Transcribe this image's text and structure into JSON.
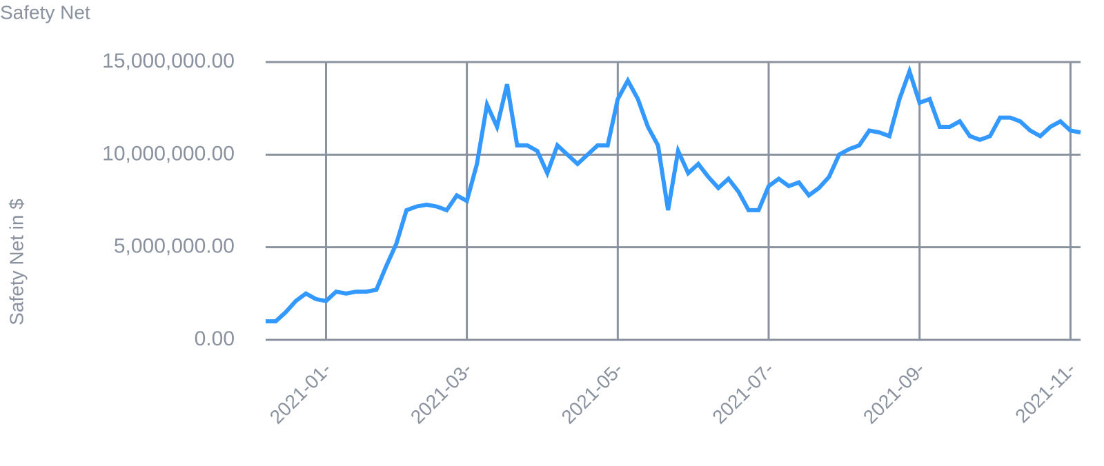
{
  "chart_data": {
    "type": "line",
    "title": "Safety Net",
    "y_label": "Safety Net in $",
    "categories": [
      null,
      null,
      null,
      null,
      null,
      null,
      "2021-01-",
      null,
      null,
      null,
      null,
      null,
      null,
      null,
      null,
      null,
      null,
      null,
      null,
      null,
      "2021-03-",
      null,
      null,
      null,
      null,
      null,
      null,
      null,
      null,
      null,
      null,
      null,
      null,
      null,
      null,
      "2021-05-",
      null,
      null,
      null,
      null,
      null,
      null,
      null,
      null,
      null,
      null,
      null,
      null,
      null,
      null,
      "2021-07-",
      null,
      null,
      null,
      null,
      null,
      null,
      null,
      null,
      null,
      null,
      null,
      null,
      null,
      null,
      "2021-09-",
      null,
      null,
      null,
      null,
      null,
      null,
      null,
      null,
      null,
      null,
      null,
      null,
      null,
      null,
      "2021-11-",
      null
    ],
    "values": [
      1000000,
      1000000,
      1500000,
      2100000,
      2500000,
      2200000,
      2100000,
      2600000,
      2500000,
      2600000,
      2600000,
      2700000,
      4000000,
      5200000,
      7000000,
      7200000,
      7300000,
      7200000,
      7000000,
      7800000,
      7500000,
      9500000,
      12700000,
      11500000,
      13800000,
      10500000,
      10500000,
      10200000,
      9000000,
      10500000,
      10000000,
      9500000,
      10000000,
      10500000,
      10500000,
      13000000,
      14000000,
      13000000,
      11500000,
      10500000,
      7000000,
      10200000,
      9000000,
      9500000,
      8800000,
      8200000,
      8700000,
      8000000,
      7000000,
      7000000,
      8300000,
      8700000,
      8300000,
      8500000,
      7800000,
      8200000,
      8800000,
      10000000,
      10300000,
      10500000,
      11300000,
      11200000,
      11000000,
      13000000,
      14500000,
      12800000,
      13000000,
      11500000,
      11500000,
      11800000,
      11000000,
      10800000,
      11000000,
      12000000,
      12000000,
      11800000,
      11300000,
      11000000,
      11500000,
      11800000,
      11300000,
      11200000
    ],
    "color": "#3399ff",
    "ylim": [
      0,
      15000000
    ],
    "yticks": [
      {
        "value": 0,
        "label": "0.00"
      },
      {
        "value": 5000000,
        "label": "5,000,000.00"
      },
      {
        "value": 10000000,
        "label": "10,000,000.00"
      },
      {
        "value": 15000000,
        "label": "15,000,000.00"
      }
    ],
    "grid": true
  }
}
